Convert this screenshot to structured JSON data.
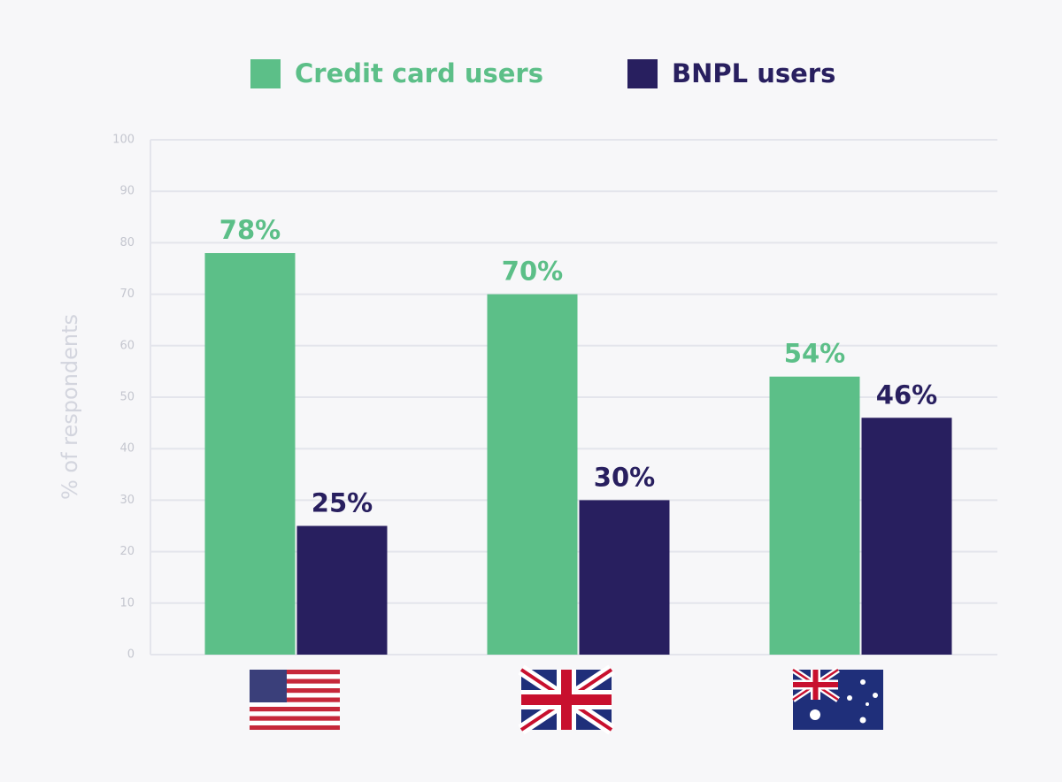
{
  "chart_data": {
    "type": "bar",
    "categories": [
      null,
      null,
      null
    ],
    "y_label": "% of respondents",
    "series": [
      {
        "name": "Credit card users",
        "color": "#5cbf88",
        "values": [
          78,
          70,
          54
        ],
        "value_labels": [
          "78%",
          "70%",
          "54%"
        ]
      },
      {
        "name": "BNPL users",
        "color": "#281f5f",
        "values": [
          25,
          30,
          46
        ],
        "value_labels": [
          "25%",
          "30%",
          "46%"
        ]
      }
    ],
    "ylim": [
      0,
      100
    ],
    "yticks": [
      0,
      10,
      20,
      30,
      40,
      50,
      60,
      70,
      80,
      90,
      100
    ],
    "grid": true
  }
}
